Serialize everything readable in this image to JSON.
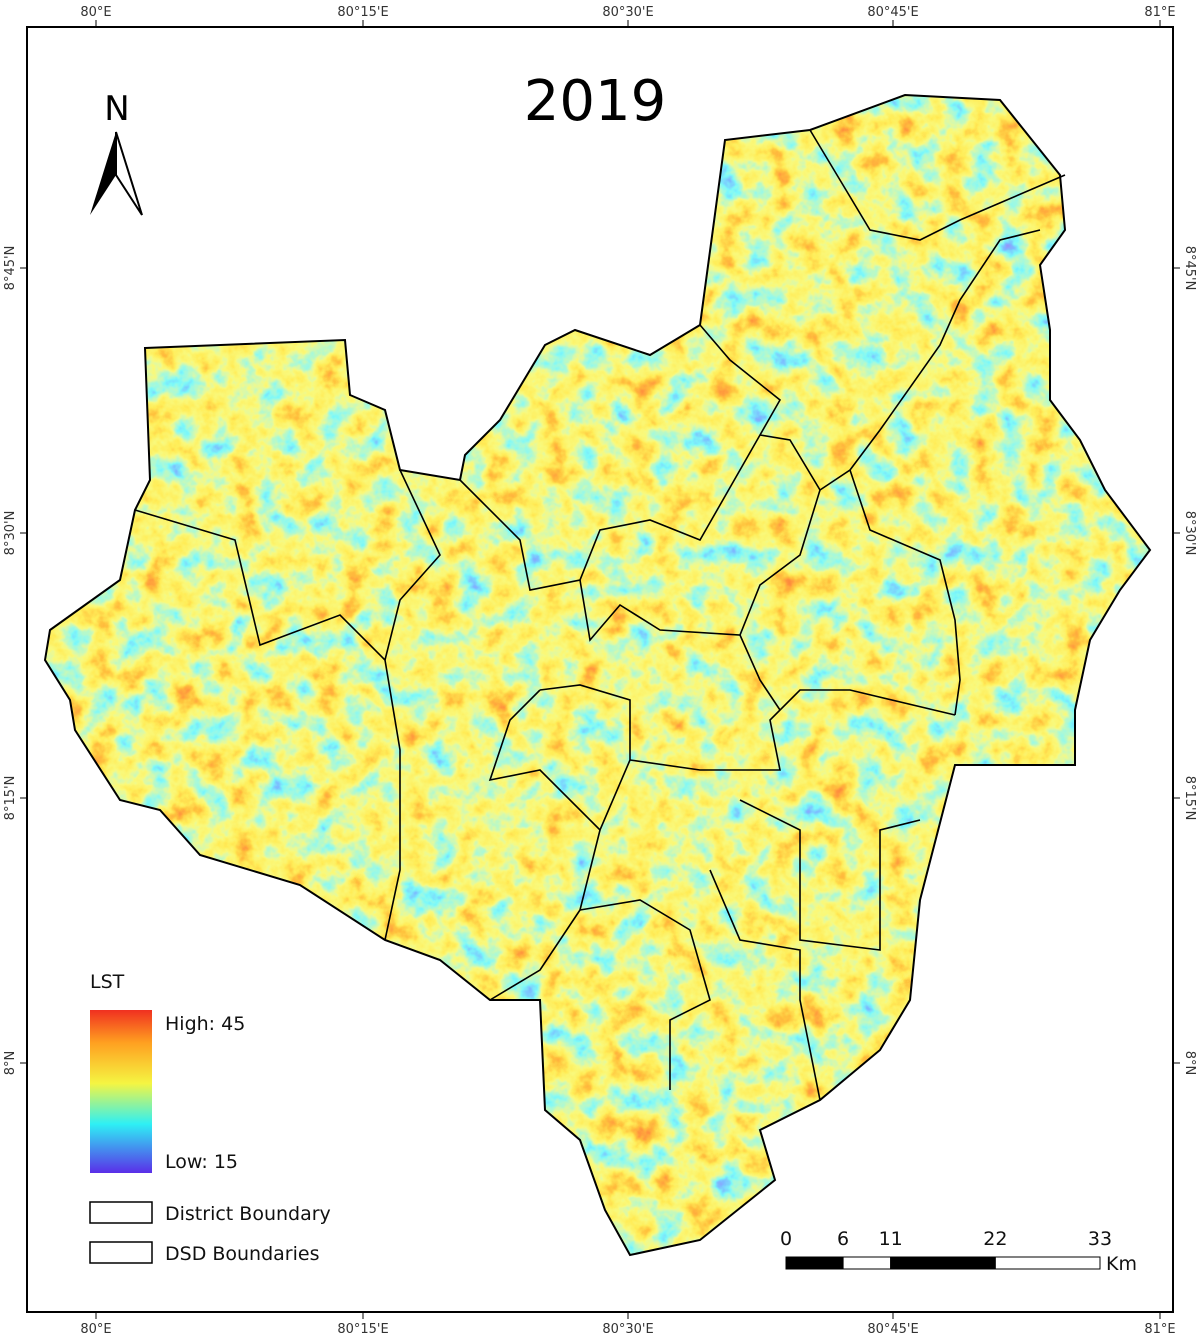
{
  "title": "2019",
  "north_arrow": "N",
  "x_labels": [
    "80°E",
    "80°15'E",
    "80°30'E",
    "80°45'E",
    "81°E"
  ],
  "y_labels": [
    "8°45'N",
    "8°30'N",
    "8°15'N",
    "8°N"
  ],
  "legend": {
    "title": "LST",
    "high": "High: 45",
    "low": "Low: 15",
    "items": [
      "District Boundary",
      "DSD Boundaries"
    ]
  },
  "scale_bar": {
    "ticks": [
      0,
      6,
      11,
      22,
      33
    ],
    "unit": "Km"
  }
}
